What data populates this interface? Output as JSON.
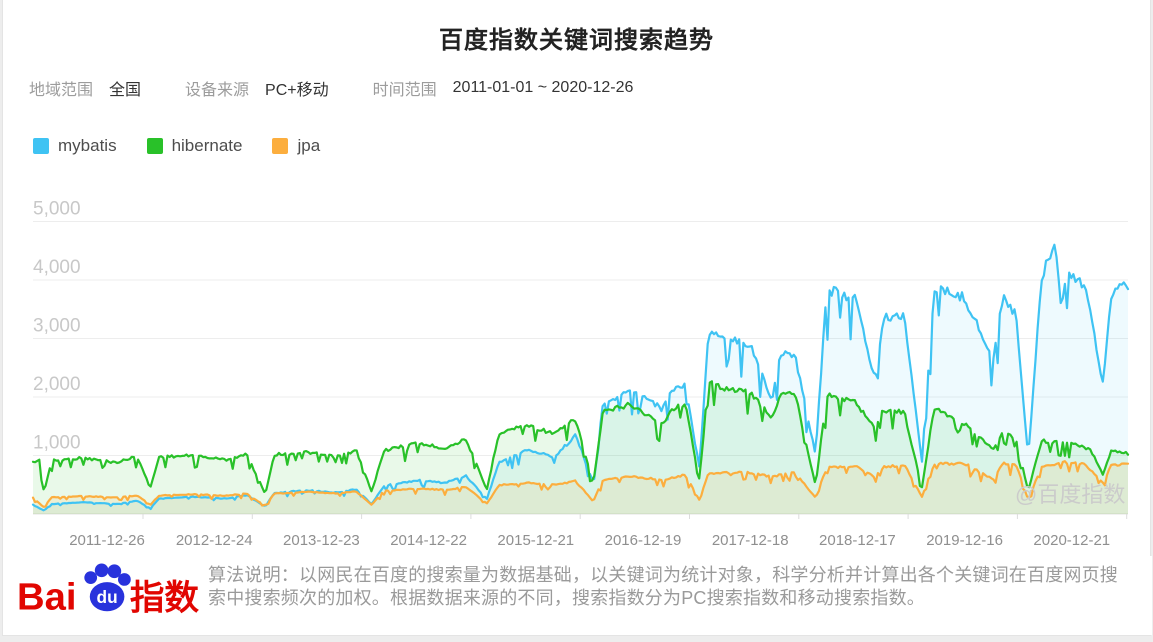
{
  "page": {
    "title": "百度指数关键词搜索趋势"
  },
  "filters": {
    "region_label": "地域范围",
    "region_value": "全国",
    "device_label": "设备来源",
    "device_value": "PC+移动",
    "time_label": "时间范围",
    "time_value": "2011-01-01 ~ 2020-12-26"
  },
  "legend": [
    {
      "label": "mybatis",
      "color": "#3fc3f3"
    },
    {
      "label": "hibernate",
      "color": "#29c129"
    },
    {
      "label": "jpa",
      "color": "#fcae3e"
    }
  ],
  "watermark": "@百度指数",
  "footer": {
    "logo_bai": "Bai",
    "logo_du": "du",
    "logo_suffix": "指数",
    "logo_red": "#e10601",
    "logo_blue": "#2832dc",
    "description_line1": "算法说明：以网民在百度的搜索量为数据基础，以关键词为统计对象，科学分析并计算出各个关键词在百度网页搜",
    "description_line2": "索中搜索频次的加权。根据数据来源的不同，搜索指数分为PC搜索指数和移动搜索指数。"
  },
  "chart_data": {
    "type": "line",
    "title": "百度指数关键词搜索趋势",
    "x_start": "2011-01-01",
    "x_end": "2020-12-26",
    "x_tick_labels": [
      "2011-12-26",
      "2012-12-24",
      "2013-12-23",
      "2014-12-22",
      "2015-12-21",
      "2016-12-19",
      "2017-12-18",
      "2018-12-17",
      "2019-12-16",
      "2020-12-21"
    ],
    "y_axis": {
      "ticks": [
        "1,000",
        "2,000",
        "3,000",
        "4,000",
        "5,000"
      ],
      "values": [
        1000,
        2000,
        3000,
        4000,
        5000
      ],
      "min": 0,
      "max": 5000
    },
    "grid": true,
    "legend_position": "top-left",
    "x_unit": "years_since_2011",
    "note_annual_dips": "deep dips each Chinese New Year (early Feb)",
    "series": [
      {
        "name": "mybatis",
        "color": "#3fc3f3",
        "points": [
          [
            0,
            160
          ],
          [
            0.1,
            60
          ],
          [
            0.17,
            175
          ],
          [
            0.45,
            205
          ],
          [
            0.76,
            175
          ],
          [
            0.95,
            230
          ],
          [
            1.07,
            100
          ],
          [
            1.15,
            265
          ],
          [
            1.45,
            300
          ],
          [
            1.76,
            270
          ],
          [
            1.95,
            330
          ],
          [
            2.12,
            130
          ],
          [
            2.2,
            365
          ],
          [
            2.5,
            415
          ],
          [
            2.76,
            375
          ],
          [
            2.95,
            430
          ],
          [
            3.09,
            170
          ],
          [
            3.2,
            490
          ],
          [
            3.5,
            590
          ],
          [
            3.76,
            545
          ],
          [
            3.95,
            670
          ],
          [
            4.14,
            260
          ],
          [
            4.25,
            900
          ],
          [
            4.5,
            1120
          ],
          [
            4.76,
            1000
          ],
          [
            4.95,
            1380
          ],
          [
            5.11,
            550
          ],
          [
            5.2,
            1920
          ],
          [
            5.45,
            2150
          ],
          [
            5.6,
            2050
          ],
          [
            5.74,
            1820
          ],
          [
            5.82,
            2150
          ],
          [
            5.95,
            2280
          ],
          [
            6.08,
            800
          ],
          [
            6.16,
            3180
          ],
          [
            6.35,
            3100
          ],
          [
            6.55,
            2950
          ],
          [
            6.74,
            1980
          ],
          [
            6.82,
            2820
          ],
          [
            6.95,
            2780
          ],
          [
            7.14,
            1050
          ],
          [
            7.24,
            3920
          ],
          [
            7.5,
            3780
          ],
          [
            7.68,
            2350
          ],
          [
            7.76,
            3420
          ],
          [
            7.95,
            3480
          ],
          [
            8.11,
            900
          ],
          [
            8.22,
            3950
          ],
          [
            8.5,
            3780
          ],
          [
            8.76,
            2700
          ],
          [
            8.85,
            3850
          ],
          [
            8.97,
            3450
          ],
          [
            9.08,
            1000
          ],
          [
            9.2,
            4100
          ],
          [
            9.32,
            4780
          ],
          [
            9.38,
            3700
          ],
          [
            9.45,
            4250
          ],
          [
            9.6,
            4000
          ],
          [
            9.76,
            2300
          ],
          [
            9.84,
            3900
          ],
          [
            9.99,
            4000
          ]
        ]
      },
      {
        "name": "hibernate",
        "color": "#29c129",
        "points": [
          [
            0,
            900
          ],
          [
            0.06,
            950
          ],
          [
            0.1,
            380
          ],
          [
            0.17,
            930
          ],
          [
            0.45,
            980
          ],
          [
            0.76,
            900
          ],
          [
            0.95,
            1010
          ],
          [
            1.07,
            450
          ],
          [
            1.15,
            1000
          ],
          [
            1.45,
            1020
          ],
          [
            1.76,
            950
          ],
          [
            1.95,
            1040
          ],
          [
            2.12,
            350
          ],
          [
            2.2,
            1040
          ],
          [
            2.5,
            1080
          ],
          [
            2.76,
            1000
          ],
          [
            2.95,
            1110
          ],
          [
            3.09,
            380
          ],
          [
            3.2,
            1110
          ],
          [
            3.5,
            1240
          ],
          [
            3.76,
            1150
          ],
          [
            3.95,
            1310
          ],
          [
            4.14,
            420
          ],
          [
            4.25,
            1420
          ],
          [
            4.5,
            1560
          ],
          [
            4.76,
            1400
          ],
          [
            4.95,
            1660
          ],
          [
            5.11,
            520
          ],
          [
            5.2,
            1780
          ],
          [
            5.45,
            1920
          ],
          [
            5.74,
            1560
          ],
          [
            5.82,
            1820
          ],
          [
            5.95,
            1930
          ],
          [
            6.08,
            600
          ],
          [
            6.16,
            2300
          ],
          [
            6.35,
            2180
          ],
          [
            6.55,
            2120
          ],
          [
            6.74,
            1680
          ],
          [
            6.82,
            2080
          ],
          [
            6.95,
            2130
          ],
          [
            7.14,
            500
          ],
          [
            7.24,
            2080
          ],
          [
            7.5,
            1960
          ],
          [
            7.68,
            1520
          ],
          [
            7.76,
            1820
          ],
          [
            7.95,
            1780
          ],
          [
            8.11,
            450
          ],
          [
            8.22,
            1870
          ],
          [
            8.5,
            1580
          ],
          [
            8.76,
            1120
          ],
          [
            8.85,
            1420
          ],
          [
            8.97,
            1320
          ],
          [
            9.08,
            400
          ],
          [
            9.2,
            1280
          ],
          [
            9.5,
            1220
          ],
          [
            9.65,
            1120
          ],
          [
            9.76,
            700
          ],
          [
            9.84,
            1120
          ],
          [
            9.99,
            1060
          ]
        ]
      },
      {
        "name": "jpa",
        "color": "#fcae3e",
        "points": [
          [
            0,
            280
          ],
          [
            0.1,
            120
          ],
          [
            0.17,
            295
          ],
          [
            0.45,
            310
          ],
          [
            0.76,
            290
          ],
          [
            0.95,
            325
          ],
          [
            1.07,
            160
          ],
          [
            1.15,
            325
          ],
          [
            1.45,
            345
          ],
          [
            1.76,
            320
          ],
          [
            1.95,
            355
          ],
          [
            2.12,
            140
          ],
          [
            2.2,
            355
          ],
          [
            2.5,
            385
          ],
          [
            2.76,
            360
          ],
          [
            2.95,
            395
          ],
          [
            3.09,
            160
          ],
          [
            3.2,
            405
          ],
          [
            3.5,
            445
          ],
          [
            3.76,
            420
          ],
          [
            3.95,
            475
          ],
          [
            4.14,
            180
          ],
          [
            4.25,
            505
          ],
          [
            4.5,
            545
          ],
          [
            4.76,
            510
          ],
          [
            4.95,
            575
          ],
          [
            5.11,
            220
          ],
          [
            5.2,
            605
          ],
          [
            5.45,
            655
          ],
          [
            5.74,
            600
          ],
          [
            5.95,
            685
          ],
          [
            6.08,
            250
          ],
          [
            6.16,
            705
          ],
          [
            6.5,
            735
          ],
          [
            6.74,
            650
          ],
          [
            6.95,
            745
          ],
          [
            7.14,
            280
          ],
          [
            7.24,
            805
          ],
          [
            7.5,
            835
          ],
          [
            7.68,
            650
          ],
          [
            7.76,
            825
          ],
          [
            7.95,
            855
          ],
          [
            8.11,
            300
          ],
          [
            8.22,
            875
          ],
          [
            8.5,
            885
          ],
          [
            8.76,
            600
          ],
          [
            8.85,
            885
          ],
          [
            8.97,
            855
          ],
          [
            9.08,
            250
          ],
          [
            9.2,
            825
          ],
          [
            9.4,
            905
          ],
          [
            9.6,
            870
          ],
          [
            9.76,
            550
          ],
          [
            9.84,
            855
          ],
          [
            9.99,
            875
          ]
        ]
      }
    ]
  }
}
